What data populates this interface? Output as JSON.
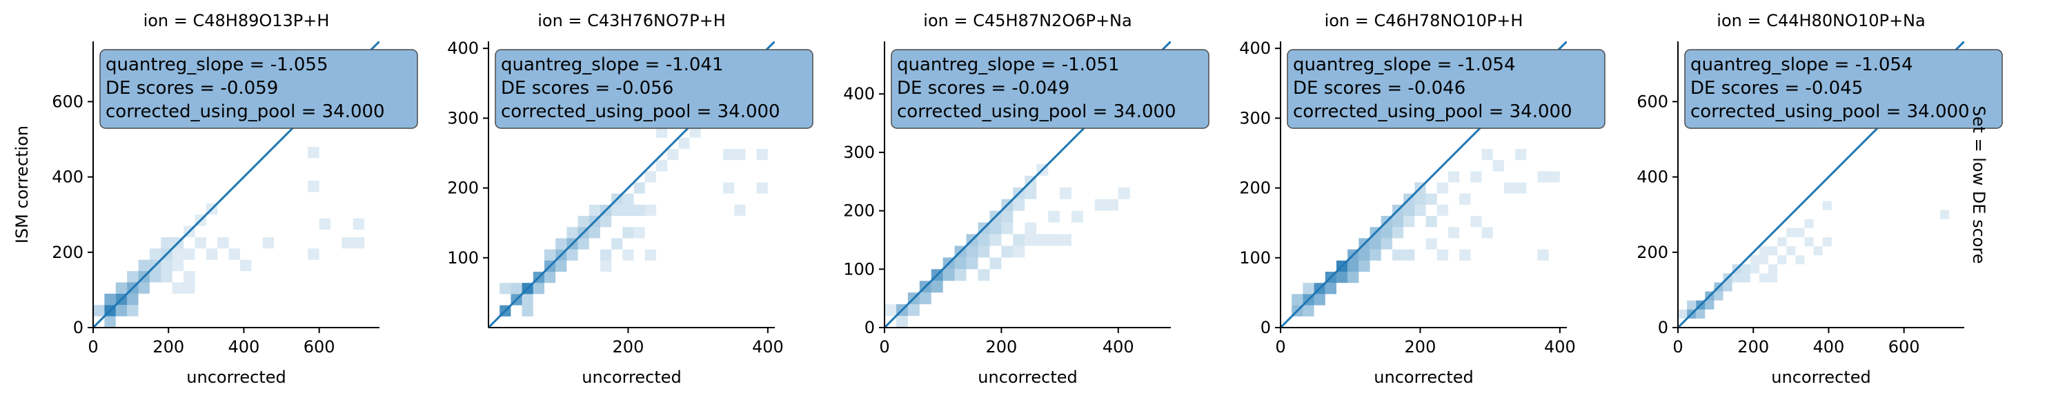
{
  "row_label": "Set = low DE score",
  "colors": {
    "hist_base": "#1f77b4",
    "line": "#1f77b4",
    "box_fill": "#8fb8dc",
    "box_edge": "#4a4a4a",
    "axis": "#000000"
  },
  "chart_data": [
    {
      "type": "heatmap",
      "title": "ion = C48H89O13P+H",
      "xlabel": "uncorrected",
      "ylabel": "ISM correction",
      "xlim": [
        0,
        760
      ],
      "ylim": [
        0,
        760
      ],
      "xticks": [
        0,
        200,
        400,
        600
      ],
      "yticks": [
        0,
        200,
        400,
        600
      ],
      "annotation": [
        "quantreg_slope = -1.055",
        "DE scores = -0.059",
        "corrected_using_pool = 34.000"
      ],
      "diagonal_line": [
        [
          0,
          0
        ],
        [
          760,
          760
        ]
      ],
      "bin_size": [
        30,
        30
      ],
      "bins": [
        [
          30,
          30,
          0.9
        ],
        [
          60,
          60,
          0.8
        ],
        [
          30,
          60,
          0.6
        ],
        [
          60,
          30,
          0.5
        ],
        [
          90,
          90,
          0.6
        ],
        [
          90,
          60,
          0.5
        ],
        [
          60,
          90,
          0.4
        ],
        [
          120,
          120,
          0.5
        ],
        [
          120,
          90,
          0.4
        ],
        [
          90,
          120,
          0.3
        ],
        [
          150,
          150,
          0.3
        ],
        [
          150,
          120,
          0.3
        ],
        [
          120,
          150,
          0.3
        ],
        [
          180,
          180,
          0.25
        ],
        [
          150,
          180,
          0.2
        ],
        [
          180,
          150,
          0.2
        ],
        [
          210,
          210,
          0.2
        ],
        [
          180,
          210,
          0.2
        ],
        [
          210,
          180,
          0.15
        ],
        [
          240,
          240,
          0.15
        ],
        [
          270,
          270,
          0.15
        ],
        [
          300,
          300,
          0.15
        ],
        [
          240,
          180,
          0.15
        ],
        [
          270,
          210,
          0.15
        ],
        [
          210,
          90,
          0.15
        ],
        [
          240,
          90,
          0.15
        ],
        [
          330,
          210,
          0.15
        ],
        [
          360,
          180,
          0.15
        ],
        [
          390,
          150,
          0.15
        ],
        [
          300,
          180,
          0.15
        ],
        [
          450,
          210,
          0.15
        ],
        [
          570,
          180,
          0.15
        ],
        [
          570,
          360,
          0.15
        ],
        [
          570,
          450,
          0.15
        ],
        [
          600,
          260,
          0.15
        ],
        [
          660,
          210,
          0.15
        ],
        [
          690,
          210,
          0.15
        ],
        [
          690,
          260,
          0.15
        ],
        [
          180,
          120,
          0.2
        ],
        [
          210,
          150,
          0.15
        ],
        [
          240,
          120,
          0.15
        ],
        [
          90,
          30,
          0.3
        ],
        [
          30,
          0,
          0.4
        ],
        [
          0,
          30,
          0.3
        ]
      ]
    },
    {
      "type": "heatmap",
      "title": "ion = C43H76NO7P+H",
      "xlabel": "uncorrected",
      "ylabel": "",
      "xlim": [
        0,
        410
      ],
      "ylim": [
        0,
        410
      ],
      "xticks": [
        200,
        400
      ],
      "yticks": [
        100,
        200,
        300,
        400
      ],
      "annotation": [
        "quantreg_slope = -1.041",
        "DE scores = -0.056",
        "corrected_using_pool = 34.000"
      ],
      "diagonal_line": [
        [
          0,
          0
        ],
        [
          410,
          410
        ]
      ],
      "bin_size": [
        16,
        16
      ],
      "bins": [
        [
          16,
          16,
          0.8
        ],
        [
          32,
          32,
          0.7
        ],
        [
          48,
          48,
          0.9
        ],
        [
          64,
          64,
          0.7
        ],
        [
          80,
          80,
          0.6
        ],
        [
          96,
          96,
          0.5
        ],
        [
          112,
          112,
          0.5
        ],
        [
          128,
          128,
          0.4
        ],
        [
          144,
          144,
          0.35
        ],
        [
          160,
          160,
          0.3
        ],
        [
          176,
          176,
          0.25
        ],
        [
          32,
          48,
          0.3
        ],
        [
          48,
          32,
          0.3
        ],
        [
          64,
          48,
          0.4
        ],
        [
          80,
          64,
          0.4
        ],
        [
          96,
          80,
          0.4
        ],
        [
          112,
          96,
          0.3
        ],
        [
          128,
          112,
          0.3
        ],
        [
          144,
          128,
          0.3
        ],
        [
          80,
          96,
          0.3
        ],
        [
          96,
          112,
          0.3
        ],
        [
          112,
          128,
          0.25
        ],
        [
          128,
          144,
          0.25
        ],
        [
          144,
          160,
          0.2
        ],
        [
          160,
          144,
          0.25
        ],
        [
          176,
          160,
          0.2
        ],
        [
          192,
          176,
          0.2
        ],
        [
          208,
          192,
          0.2
        ],
        [
          224,
          208,
          0.15
        ],
        [
          240,
          224,
          0.15
        ],
        [
          256,
          240,
          0.15
        ],
        [
          272,
          256,
          0.15
        ],
        [
          288,
          272,
          0.15
        ],
        [
          304,
          288,
          0.15
        ],
        [
          192,
          160,
          0.2
        ],
        [
          208,
          160,
          0.2
        ],
        [
          224,
          160,
          0.15
        ],
        [
          160,
          96,
          0.2
        ],
        [
          176,
          112,
          0.2
        ],
        [
          192,
          128,
          0.2
        ],
        [
          208,
          128,
          0.15
        ],
        [
          160,
          80,
          0.15
        ],
        [
          192,
          96,
          0.15
        ],
        [
          224,
          96,
          0.15
        ],
        [
          320,
          288,
          0.15
        ],
        [
          336,
          240,
          0.15
        ],
        [
          352,
          240,
          0.15
        ],
        [
          384,
          240,
          0.15
        ],
        [
          336,
          192,
          0.15
        ],
        [
          352,
          160,
          0.15
        ],
        [
          384,
          192,
          0.15
        ],
        [
          384,
          288,
          0.15
        ],
        [
          240,
          272,
          0.15
        ],
        [
          48,
          16,
          0.3
        ],
        [
          16,
          48,
          0.25
        ]
      ]
    },
    {
      "type": "heatmap",
      "title": "ion = C45H87N2O6P+Na",
      "xlabel": "uncorrected",
      "ylabel": "",
      "xlim": [
        0,
        490
      ],
      "ylim": [
        0,
        490
      ],
      "xticks": [
        0,
        200,
        400
      ],
      "yticks": [
        0,
        100,
        200,
        300,
        400
      ],
      "annotation": [
        "quantreg_slope = -1.051",
        "DE scores = -0.049",
        "corrected_using_pool = 34.000"
      ],
      "diagonal_line": [
        [
          0,
          0
        ],
        [
          490,
          490
        ]
      ],
      "bin_size": [
        20,
        20
      ],
      "bins": [
        [
          20,
          20,
          0.5
        ],
        [
          40,
          40,
          0.5
        ],
        [
          60,
          60,
          0.6
        ],
        [
          80,
          80,
          0.7
        ],
        [
          100,
          100,
          0.5
        ],
        [
          120,
          120,
          0.45
        ],
        [
          140,
          140,
          0.4
        ],
        [
          160,
          160,
          0.35
        ],
        [
          180,
          180,
          0.3
        ],
        [
          200,
          200,
          0.3
        ],
        [
          220,
          220,
          0.25
        ],
        [
          240,
          240,
          0.2
        ],
        [
          260,
          260,
          0.15
        ],
        [
          40,
          20,
          0.3
        ],
        [
          60,
          40,
          0.4
        ],
        [
          80,
          60,
          0.5
        ],
        [
          100,
          80,
          0.45
        ],
        [
          120,
          100,
          0.4
        ],
        [
          140,
          120,
          0.35
        ],
        [
          160,
          140,
          0.3
        ],
        [
          180,
          160,
          0.3
        ],
        [
          200,
          180,
          0.25
        ],
        [
          220,
          200,
          0.2
        ],
        [
          240,
          220,
          0.2
        ],
        [
          120,
          80,
          0.25
        ],
        [
          140,
          100,
          0.3
        ],
        [
          160,
          120,
          0.25
        ],
        [
          180,
          140,
          0.2
        ],
        [
          200,
          160,
          0.2
        ],
        [
          220,
          140,
          0.2
        ],
        [
          240,
          160,
          0.15
        ],
        [
          240,
          140,
          0.15
        ],
        [
          260,
          140,
          0.15
        ],
        [
          280,
          140,
          0.15
        ],
        [
          300,
          140,
          0.15
        ],
        [
          200,
          120,
          0.2
        ],
        [
          220,
          120,
          0.15
        ],
        [
          180,
          100,
          0.2
        ],
        [
          160,
          80,
          0.2
        ],
        [
          280,
          180,
          0.15
        ],
        [
          320,
          180,
          0.15
        ],
        [
          380,
          200,
          0.15
        ],
        [
          400,
          220,
          0.15
        ],
        [
          360,
          200,
          0.15
        ],
        [
          300,
          220,
          0.15
        ],
        [
          20,
          0,
          0.2
        ],
        [
          0,
          20,
          0.15
        ]
      ]
    },
    {
      "type": "heatmap",
      "title": "ion = C46H78NO10P+H",
      "xlabel": "uncorrected",
      "ylabel": "",
      "xlim": [
        0,
        410
      ],
      "ylim": [
        0,
        410
      ],
      "xticks": [
        0,
        200,
        400
      ],
      "yticks": [
        0,
        100,
        200,
        300,
        400
      ],
      "annotation": [
        "quantreg_slope = -1.054",
        "DE scores = -0.046",
        "corrected_using_pool = 34.000"
      ],
      "diagonal_line": [
        [
          0,
          0
        ],
        [
          410,
          410
        ]
      ],
      "bin_size": [
        16,
        16
      ],
      "bins": [
        [
          16,
          16,
          0.5
        ],
        [
          32,
          32,
          0.7
        ],
        [
          48,
          48,
          0.8
        ],
        [
          64,
          64,
          0.8
        ],
        [
          80,
          80,
          0.9
        ],
        [
          96,
          96,
          0.6
        ],
        [
          112,
          112,
          0.5
        ],
        [
          128,
          128,
          0.45
        ],
        [
          144,
          144,
          0.4
        ],
        [
          160,
          160,
          0.35
        ],
        [
          176,
          176,
          0.3
        ],
        [
          192,
          192,
          0.25
        ],
        [
          32,
          16,
          0.4
        ],
        [
          48,
          32,
          0.55
        ],
        [
          64,
          48,
          0.6
        ],
        [
          80,
          64,
          0.7
        ],
        [
          96,
          80,
          0.6
        ],
        [
          112,
          96,
          0.5
        ],
        [
          128,
          112,
          0.45
        ],
        [
          144,
          128,
          0.4
        ],
        [
          160,
          144,
          0.35
        ],
        [
          176,
          160,
          0.3
        ],
        [
          192,
          176,
          0.25
        ],
        [
          96,
          64,
          0.45
        ],
        [
          112,
          80,
          0.4
        ],
        [
          128,
          96,
          0.35
        ],
        [
          144,
          112,
          0.3
        ],
        [
          160,
          128,
          0.25
        ],
        [
          176,
          144,
          0.2
        ],
        [
          192,
          160,
          0.2
        ],
        [
          208,
          176,
          0.2
        ],
        [
          224,
          192,
          0.15
        ],
        [
          240,
          208,
          0.15
        ],
        [
          208,
          144,
          0.2
        ],
        [
          224,
          160,
          0.15
        ],
        [
          256,
          176,
          0.15
        ],
        [
          272,
          144,
          0.15
        ],
        [
          288,
          128,
          0.15
        ],
        [
          240,
          128,
          0.15
        ],
        [
          208,
          112,
          0.15
        ],
        [
          224,
          96,
          0.15
        ],
        [
          160,
          96,
          0.2
        ],
        [
          176,
          96,
          0.2
        ],
        [
          256,
          96,
          0.15
        ],
        [
          272,
          208,
          0.15
        ],
        [
          288,
          240,
          0.15
        ],
        [
          304,
          224,
          0.15
        ],
        [
          320,
          192,
          0.15
        ],
        [
          336,
          192,
          0.15
        ],
        [
          368,
          208,
          0.15
        ],
        [
          384,
          208,
          0.15
        ],
        [
          336,
          240,
          0.15
        ],
        [
          368,
          96,
          0.15
        ],
        [
          16,
          32,
          0.4
        ],
        [
          32,
          48,
          0.3
        ]
      ]
    },
    {
      "type": "heatmap",
      "title": "ion = C44H80NO10P+Na",
      "xlabel": "uncorrected",
      "ylabel": "",
      "xlim": [
        0,
        760
      ],
      "ylim": [
        0,
        760
      ],
      "xticks": [
        0,
        200,
        400,
        600
      ],
      "yticks": [
        0,
        200,
        400,
        600
      ],
      "annotation": [
        "quantreg_slope = -1.054",
        "DE scores = -0.045",
        "corrected_using_pool = 34.000"
      ],
      "diagonal_line": [
        [
          0,
          0
        ],
        [
          760,
          760
        ]
      ],
      "bin_size": [
        24,
        24
      ],
      "bins": [
        [
          24,
          24,
          0.6
        ],
        [
          48,
          48,
          0.7
        ],
        [
          72,
          72,
          0.55
        ],
        [
          96,
          96,
          0.45
        ],
        [
          120,
          120,
          0.3
        ],
        [
          144,
          144,
          0.25
        ],
        [
          48,
          24,
          0.4
        ],
        [
          72,
          48,
          0.45
        ],
        [
          96,
          72,
          0.35
        ],
        [
          120,
          96,
          0.3
        ],
        [
          144,
          120,
          0.2
        ],
        [
          168,
          144,
          0.2
        ],
        [
          192,
          168,
          0.15
        ],
        [
          216,
          192,
          0.15
        ],
        [
          168,
          120,
          0.2
        ],
        [
          192,
          144,
          0.15
        ],
        [
          216,
          168,
          0.15
        ],
        [
          240,
          192,
          0.15
        ],
        [
          264,
          216,
          0.15
        ],
        [
          288,
          240,
          0.15
        ],
        [
          240,
          144,
          0.15
        ],
        [
          264,
          168,
          0.15
        ],
        [
          288,
          192,
          0.15
        ],
        [
          216,
          120,
          0.15
        ],
        [
          240,
          120,
          0.15
        ],
        [
          312,
          168,
          0.15
        ],
        [
          336,
          216,
          0.15
        ],
        [
          360,
          192,
          0.15
        ],
        [
          384,
          216,
          0.15
        ],
        [
          312,
          240,
          0.15
        ],
        [
          336,
          264,
          0.15
        ],
        [
          384,
          312,
          0.15
        ],
        [
          696,
          288,
          0.15
        ],
        [
          24,
          48,
          0.3
        ],
        [
          0,
          24,
          0.2
        ]
      ]
    }
  ]
}
